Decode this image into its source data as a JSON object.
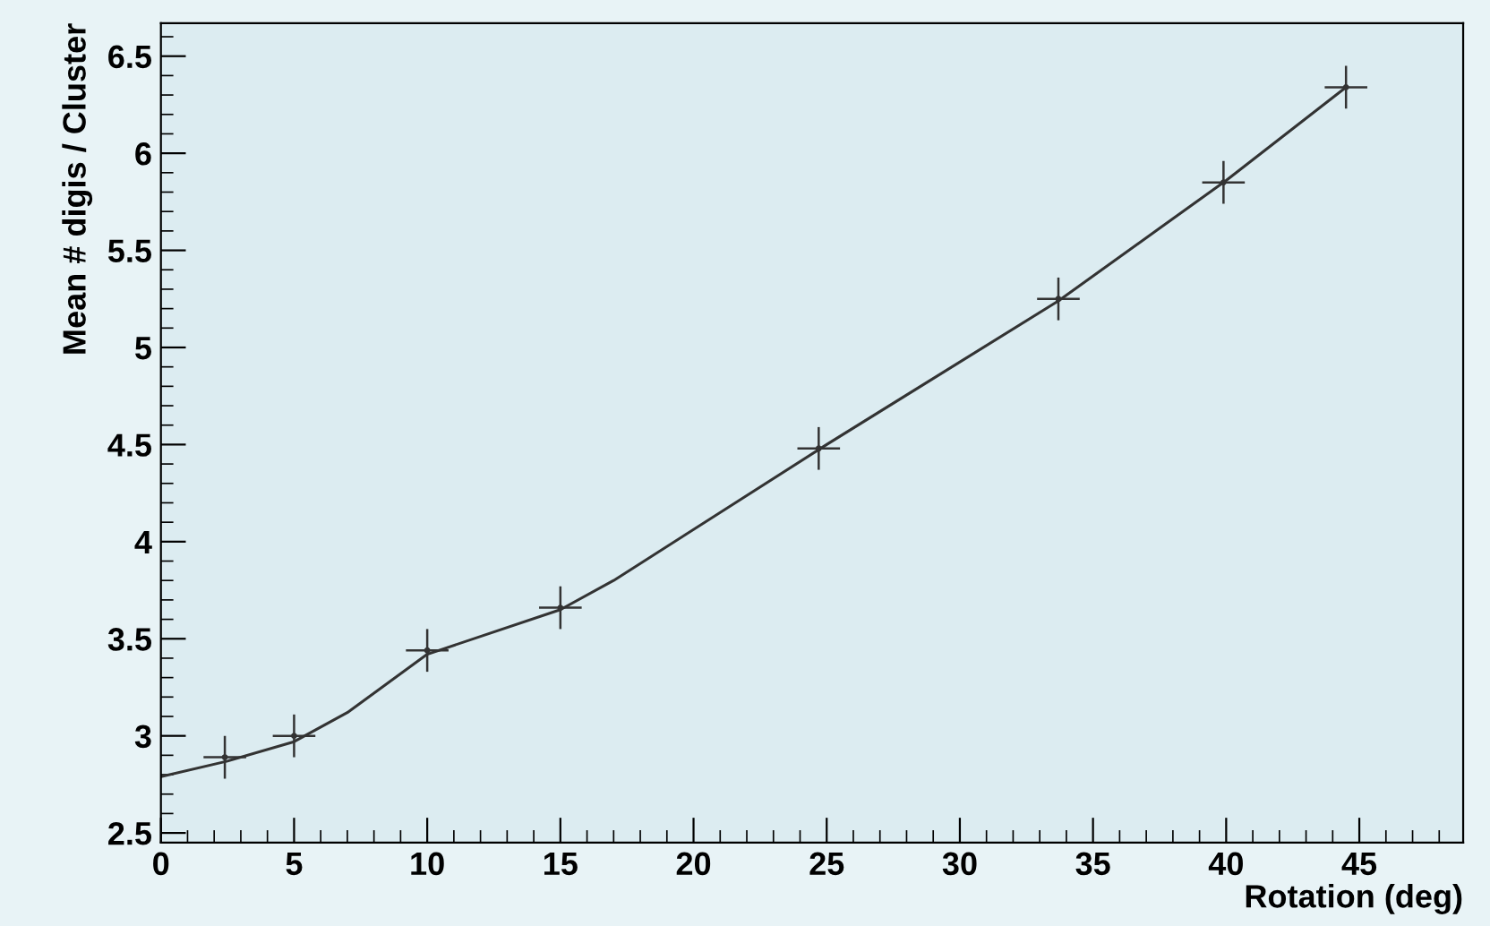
{
  "chart_data": {
    "type": "line",
    "xlabel": "Rotation (deg)",
    "ylabel": "Mean # digis / Cluster",
    "xlim": [
      0,
      48.9
    ],
    "ylim": [
      2.45,
      6.67
    ],
    "xticks": [
      0,
      5,
      10,
      15,
      20,
      25,
      30,
      35,
      40,
      45
    ],
    "yticks": [
      2.5,
      3,
      3.5,
      4,
      4.5,
      5,
      5.5,
      6,
      6.5
    ],
    "grid": false,
    "legend": false,
    "series": [
      {
        "type": "scatter",
        "marker": "circle",
        "color": "#333333",
        "x": [
          2.4,
          5.0,
          10.0,
          15.0,
          24.7,
          33.7,
          39.9,
          44.5
        ],
        "values": [
          2.89,
          3.0,
          3.44,
          3.66,
          4.48,
          5.25,
          5.85,
          6.34
        ],
        "errors": [
          0.11,
          0.11,
          0.11,
          0.11,
          0.11,
          0.11,
          0.11,
          0.11
        ],
        "xerrors": [
          0.8,
          0.8,
          0.8,
          0.8,
          0.8,
          0.8,
          0.8,
          0.8
        ]
      },
      {
        "color": "#333333",
        "x": [
          0,
          2.5,
          5,
          7,
          10,
          15,
          17,
          25,
          33.7,
          40,
          44.5
        ],
        "values": [
          2.79,
          2.87,
          2.97,
          3.12,
          3.42,
          3.65,
          3.8,
          4.5,
          5.24,
          5.86,
          6.34
        ]
      }
    ]
  }
}
